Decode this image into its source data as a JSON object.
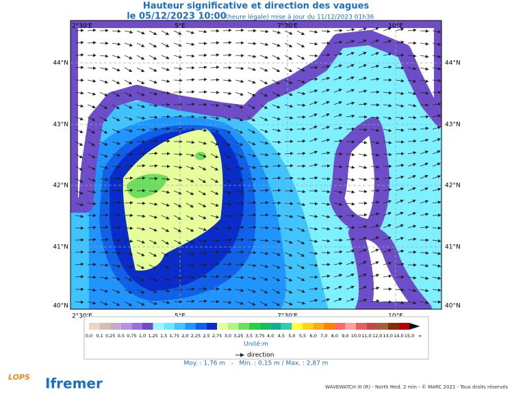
{
  "header": {
    "title": "Hauteur significative et direction des vagues",
    "date": "le 05/12/2023 10:00",
    "note": "(heure légale) mise à jour du 11/12/2023 01h36"
  },
  "map": {
    "lon_labels": [
      "2°30'E",
      "5°E",
      "7°30'E",
      "10°E"
    ],
    "lat_labels": [
      "44°N",
      "43°N",
      "42°N",
      "41°N",
      "40°N"
    ]
  },
  "legend": {
    "labels": [
      "0,0",
      "0,1",
      "0,25",
      "0,5",
      "0,75",
      "1,0",
      "1,25",
      "1,5",
      "1,75",
      "2,0",
      "2,25",
      "2,5",
      "2,75",
      "3,0",
      "3,25",
      "3,5",
      "3,75",
      "4,0",
      "4,5",
      "5,0",
      "5,5",
      "6,0",
      "7,0",
      "8,0",
      "9,0",
      "10,0",
      "11,0",
      "12,0",
      "13,0",
      "14,0",
      "15,0",
      "∞"
    ],
    "colors": [
      "#e6d7c8",
      "#d4bfae",
      "#c9a9c4",
      "#b892e0",
      "#9a70dc",
      "#6e4ec8",
      "#9ff3ff",
      "#6fe6ff",
      "#3fc4ff",
      "#2094ff",
      "#1060e8",
      "#0a2cc8",
      "#e6ff9a",
      "#b6f27e",
      "#6ede5e",
      "#28d040",
      "#12c060",
      "#10b090",
      "#38c8b8",
      "#ffff40",
      "#ffd21e",
      "#ffa81a",
      "#ff8000",
      "#ff6868",
      "#ffa0a0",
      "#e06060",
      "#c04848",
      "#a06040",
      "#803000",
      "#b00000",
      "#111111"
    ],
    "unit": "Unité:m",
    "direction": "direction"
  },
  "stats": "Moy. : 1,76 m   -   Min. : 0,15 m / Max. : 2,87 m",
  "footer": {
    "credit": "WAVEWATCH III (R) - North Med. 2 min - © MARC 2021 - Tous droits réservés",
    "logo_left": "LOPS",
    "logo_right": "Ifremer"
  }
}
